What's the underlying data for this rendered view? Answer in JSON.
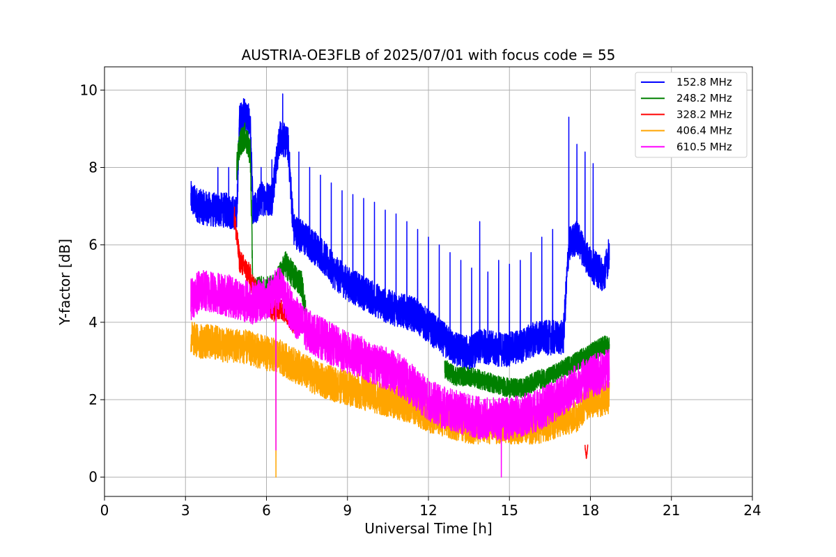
{
  "chart_data": {
    "type": "line",
    "title": "AUSTRIA-OE3FLB of 2025/07/01 with focus code = 55",
    "xlabel": "Universal Time [h]",
    "ylabel": "Y-factor [dB]",
    "xlim": [
      0,
      24
    ],
    "ylim": [
      -0.5,
      10.6
    ],
    "xticks": [
      0,
      3,
      6,
      9,
      12,
      15,
      18,
      21,
      24
    ],
    "xtick_labels": [
      "0",
      "3",
      "6",
      "9",
      "12",
      "15",
      "18",
      "21",
      "24"
    ],
    "yticks": [
      0,
      2,
      4,
      6,
      8,
      10
    ],
    "ytick_labels": [
      "0",
      "2",
      "4",
      "6",
      "8",
      "10"
    ],
    "grid": true,
    "legend_position": "top-right",
    "series": [
      {
        "name": "152.8 MHz",
        "color": "#0000ff",
        "x": [
          3.2,
          3.5,
          4.0,
          4.5,
          4.9,
          5.0,
          5.2,
          5.4,
          5.5,
          5.8,
          6.2,
          6.5,
          6.8,
          7.0,
          7.5,
          8.0,
          8.5,
          9.0,
          9.5,
          10.0,
          10.5,
          11.0,
          11.5,
          12.0,
          12.5,
          13.0,
          13.5,
          14.0,
          14.5,
          15.0,
          15.5,
          16.0,
          16.5,
          17.0,
          17.2,
          17.5,
          18.0,
          18.5,
          18.7
        ],
        "y": [
          7.2,
          7.0,
          6.9,
          6.9,
          6.8,
          9.2,
          9.4,
          9.1,
          6.8,
          7.2,
          7.2,
          8.8,
          8.6,
          6.4,
          6.1,
          5.8,
          5.3,
          5.0,
          4.8,
          4.6,
          4.4,
          4.3,
          4.2,
          3.9,
          3.6,
          3.3,
          3.2,
          3.4,
          3.3,
          3.3,
          3.4,
          3.6,
          3.6,
          3.6,
          6.0,
          6.2,
          5.5,
          5.2,
          5.8
        ],
        "spikes": [
          [
            4.2,
            8.0
          ],
          [
            4.6,
            8.0
          ],
          [
            5.8,
            8.0
          ],
          [
            6.2,
            8.2
          ],
          [
            6.6,
            9.9
          ],
          [
            7.2,
            8.4
          ],
          [
            7.6,
            8.0
          ],
          [
            8.0,
            7.8
          ],
          [
            8.4,
            7.6
          ],
          [
            8.8,
            7.4
          ],
          [
            9.2,
            7.3
          ],
          [
            9.6,
            7.2
          ],
          [
            10.0,
            7.1
          ],
          [
            10.4,
            6.9
          ],
          [
            10.8,
            6.8
          ],
          [
            11.2,
            6.6
          ],
          [
            11.6,
            6.4
          ],
          [
            12.0,
            6.2
          ],
          [
            12.4,
            6.0
          ],
          [
            12.8,
            5.8
          ],
          [
            13.2,
            5.6
          ],
          [
            13.6,
            5.4
          ],
          [
            13.9,
            6.6
          ],
          [
            14.2,
            5.3
          ],
          [
            14.6,
            5.6
          ],
          [
            15.0,
            5.5
          ],
          [
            15.4,
            5.6
          ],
          [
            15.8,
            5.8
          ],
          [
            16.2,
            6.2
          ],
          [
            16.6,
            6.4
          ],
          [
            17.2,
            9.3
          ],
          [
            17.5,
            8.6
          ],
          [
            17.8,
            8.4
          ],
          [
            18.1,
            8.1
          ]
        ]
      },
      {
        "name": "248.2 MHz",
        "color": "#008000",
        "x": [
          4.9,
          5.0,
          5.2,
          5.4,
          5.5,
          6.3,
          6.7,
          7.0,
          7.3,
          7.5
        ],
        "y": [
          8.0,
          8.6,
          8.8,
          8.4,
          4.8,
          4.9,
          5.5,
          5.2,
          5.0,
          4.0
        ],
        "x2": [
          12.6,
          13.0,
          13.5,
          14.0,
          14.5,
          15.0,
          15.5,
          16.0,
          16.5,
          17.0,
          17.5,
          18.0,
          18.5,
          18.7
        ],
        "y2": [
          2.8,
          2.6,
          2.6,
          2.5,
          2.4,
          2.3,
          2.3,
          2.5,
          2.6,
          2.8,
          3.0,
          3.2,
          3.4,
          3.4
        ]
      },
      {
        "name": "328.2 MHz",
        "color": "#ff0000",
        "x": [
          4.8,
          4.9,
          5.0,
          5.2,
          5.4,
          5.5,
          6.0,
          6.3,
          6.5,
          6.8,
          7.0
        ],
        "y": [
          6.8,
          6.2,
          5.6,
          5.4,
          5.2,
          4.9,
          4.5,
          4.3,
          4.4,
          4.2,
          4.0
        ],
        "x3": [
          17.8,
          17.85,
          17.9
        ],
        "y3": [
          0.8,
          0.5,
          0.8
        ]
      },
      {
        "name": "406.4 MHz",
        "color": "#ffa500",
        "x": [
          3.2,
          3.5,
          4.0,
          4.5,
          5.0,
          5.5,
          6.0,
          6.5,
          7.0,
          7.5,
          8.0,
          8.5,
          9.0,
          9.5,
          10.0,
          10.5,
          11.0,
          11.5,
          12.0,
          12.5,
          13.0,
          13.5,
          14.0,
          14.5,
          15.0,
          15.5,
          16.0,
          16.5,
          17.0,
          17.5,
          17.8,
          18.0,
          18.5,
          18.7
        ],
        "y": [
          3.6,
          3.5,
          3.5,
          3.4,
          3.4,
          3.3,
          3.2,
          3.1,
          2.9,
          2.7,
          2.5,
          2.4,
          2.3,
          2.2,
          2.1,
          2.0,
          1.9,
          1.8,
          1.6,
          1.5,
          1.4,
          1.3,
          1.3,
          1.3,
          1.3,
          1.3,
          1.3,
          1.4,
          1.5,
          1.6,
          1.9,
          2.0,
          2.0,
          2.1
        ],
        "dips": [
          [
            6.35,
            0.0
          ]
        ]
      },
      {
        "name": "610.5 MHz",
        "color": "#ff00ff",
        "x": [
          3.2,
          3.5,
          4.0,
          4.5,
          5.0,
          5.5,
          6.0,
          6.5,
          7.0,
          7.5,
          8.0,
          8.5,
          9.0,
          9.5,
          10.0,
          10.5,
          11.0,
          11.5,
          12.0,
          12.5,
          13.0,
          13.5,
          14.0,
          14.5,
          15.0,
          15.5,
          16.0,
          16.5,
          17.0,
          17.5,
          18.0,
          18.5,
          18.7
        ],
        "y": [
          4.6,
          4.8,
          4.8,
          4.7,
          4.6,
          4.5,
          4.6,
          4.9,
          4.2,
          3.8,
          3.6,
          3.4,
          3.2,
          3.1,
          2.9,
          2.8,
          2.6,
          2.3,
          2.0,
          1.8,
          1.7,
          1.6,
          1.5,
          1.5,
          1.5,
          1.6,
          1.7,
          1.9,
          2.1,
          2.4,
          2.6,
          2.7,
          2.8
        ],
        "dips": [
          [
            6.35,
            0.7
          ],
          [
            14.7,
            0.0
          ]
        ]
      }
    ]
  }
}
